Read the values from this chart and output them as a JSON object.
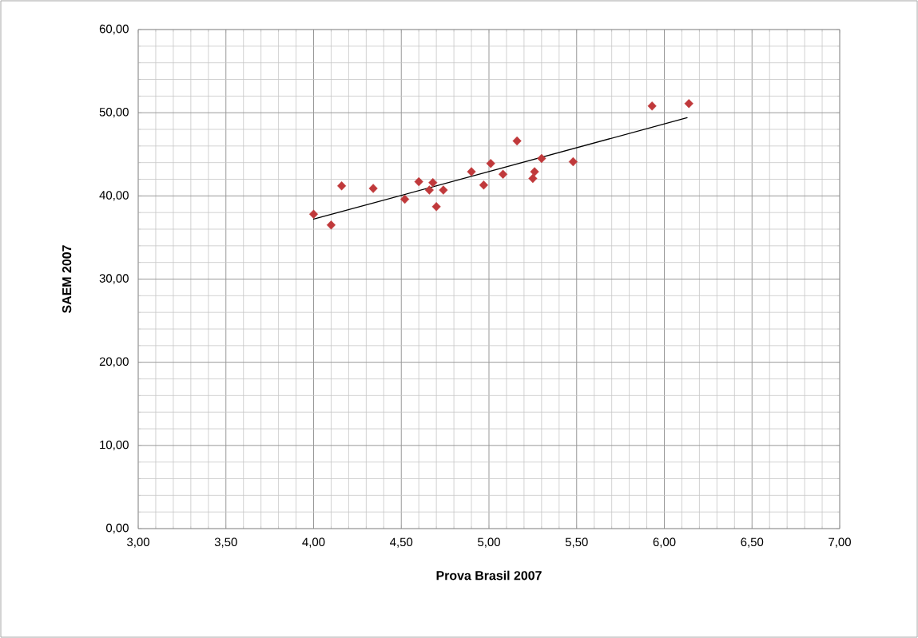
{
  "chart_data": {
    "type": "scatter",
    "xlabel": "Prova Brasil 2007",
    "ylabel": "SAEM 2007",
    "xlim": [
      3,
      7
    ],
    "ylim": [
      0,
      60
    ],
    "xticks": [
      {
        "value": 3,
        "label": "3,00"
      },
      {
        "value": 3.5,
        "label": "3,50"
      },
      {
        "value": 4,
        "label": "4,00"
      },
      {
        "value": 4.5,
        "label": "4,50"
      },
      {
        "value": 5,
        "label": "5,00"
      },
      {
        "value": 5.5,
        "label": "5,50"
      },
      {
        "value": 6,
        "label": "6,00"
      },
      {
        "value": 6.5,
        "label": "6,50"
      },
      {
        "value": 7,
        "label": "7,00"
      }
    ],
    "yticks": [
      {
        "value": 0,
        "label": "0,00"
      },
      {
        "value": 10,
        "label": "10,00"
      },
      {
        "value": 20,
        "label": "20,00"
      },
      {
        "value": 30,
        "label": "30,00"
      },
      {
        "value": 40,
        "label": "40,00"
      },
      {
        "value": 50,
        "label": "50,00"
      },
      {
        "value": 60,
        "label": "60,00"
      }
    ],
    "grid": true,
    "marker": "diamond",
    "series": [
      {
        "color": "#c0393b",
        "x": [
          4.0,
          4.1,
          4.16,
          4.34,
          4.52,
          4.6,
          4.68,
          4.66,
          4.74,
          4.7,
          4.9,
          5.01,
          4.97,
          5.08,
          5.16,
          5.3,
          5.26,
          5.25,
          5.48,
          5.93,
          6.14
        ],
        "values": [
          37.8,
          36.5,
          41.2,
          40.9,
          39.6,
          41.7,
          41.6,
          40.7,
          40.7,
          38.7,
          42.9,
          43.9,
          41.3,
          42.6,
          46.6,
          44.5,
          42.9,
          42.1,
          44.1,
          50.8,
          51.1
        ]
      },
      {
        "type": "line",
        "color": "#000000",
        "marker": "none",
        "x": [
          4.0,
          6.13
        ],
        "values": [
          37.2,
          49.4
        ]
      }
    ]
  }
}
